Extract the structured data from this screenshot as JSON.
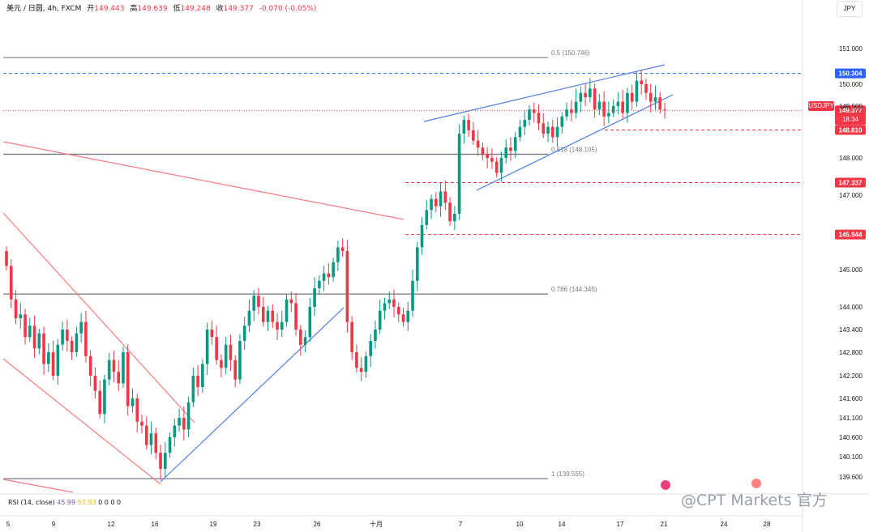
{
  "header": {
    "symbol": "美元 / 日圆, 4h, FXCM",
    "open_label": "开",
    "open": "149.443",
    "high_label": "高",
    "high": "149.639",
    "low_label": "低",
    "low": "149.248",
    "close_label": "收",
    "close": "149.377",
    "change": "-0.070 (-0.05%)"
  },
  "currency_button": "JPY",
  "rsi_legend": {
    "label": "RSI (14, close)",
    "v1": "45.99",
    "v2": "57.93",
    "zeros": "0 0 0 0"
  },
  "watermark": "@CPT Markets 官方",
  "price_tag": {
    "symbol": "USDJPY",
    "price": "149.377",
    "countdown": "18:34"
  },
  "colors": {
    "up": "#089981",
    "down": "#f23645",
    "trend_blue": "#4f7fe6",
    "trend_red": "#f77c80",
    "fib": "#787b86"
  },
  "chart_data": {
    "type": "candlestick",
    "symbol": "USDJPY",
    "timeframe": "4h",
    "y_axis_ticks": [
      "151.000",
      "150.000",
      "149.500",
      "148.000",
      "147.000",
      "145.000",
      "144.000",
      "143.400",
      "142.800",
      "142.200",
      "141.600",
      "141.100",
      "140.600",
      "140.100",
      "139.600"
    ],
    "x_axis_ticks": [
      "5",
      "9",
      "12",
      "16",
      "19",
      "23",
      "26",
      "十月",
      "7",
      "10",
      "14",
      "17",
      "21",
      "24",
      "28"
    ],
    "fib_levels": [
      {
        "label": "0.5 (150.746)",
        "value": 150.746
      },
      {
        "label": "0.618 (148.105)",
        "value": 148.105
      },
      {
        "label": "0.786 (144.345)",
        "value": 144.345
      },
      {
        "label": "1 (139.555)",
        "value": 139.555
      }
    ],
    "horizontal_levels": [
      {
        "value": 150.304,
        "label": "150.304",
        "style": "blue-dashed"
      },
      {
        "value": 148.81,
        "label": "148.810",
        "style": "red-dashed"
      },
      {
        "value": 147.337,
        "label": "147.337",
        "style": "red-dashed"
      },
      {
        "value": 145.944,
        "label": "145.944",
        "style": "red-dashed"
      }
    ],
    "last_price": 149.377,
    "series": [
      {
        "name": "close",
        "values": [
          145.1,
          144.2,
          143.7,
          143.8,
          143.2,
          143.5,
          142.9,
          143.3,
          142.5,
          142.8,
          142.2,
          143.0,
          143.4,
          143.1,
          142.8,
          143.3,
          143.6,
          142.7,
          142.2,
          141.8,
          141.2,
          142.1,
          142.6,
          142.3,
          142.0,
          142.8,
          141.4,
          141.6,
          141.0,
          140.9,
          140.4,
          140.7,
          140.2,
          139.8,
          140.2,
          140.6,
          140.9,
          141.1,
          140.8,
          141.5,
          142.2,
          141.9,
          142.5,
          143.4,
          143.2,
          142.6,
          142.4,
          143.0,
          142.6,
          142.1,
          143.1,
          143.5,
          143.9,
          144.3,
          144.0,
          143.6,
          143.9,
          143.6,
          143.4,
          143.6,
          144.2,
          144.1,
          143.4,
          143.0,
          143.2,
          144.0,
          144.5,
          144.7,
          144.9,
          144.8,
          145.2,
          145.6,
          145.5,
          143.6,
          142.8,
          142.4,
          142.3,
          142.7,
          143.1,
          143.4,
          143.9,
          144.1,
          144.2,
          144.0,
          143.8,
          143.6,
          143.9,
          144.7,
          145.6,
          146.2,
          146.6,
          146.9,
          146.7,
          147.1,
          146.8,
          146.3,
          146.5,
          148.7,
          149.1,
          148.8,
          148.5,
          148.3,
          148.1,
          148.0,
          147.9,
          147.6,
          148.0,
          148.3,
          148.2,
          148.6,
          148.9,
          149.1,
          149.4,
          149.3,
          149.0,
          148.7,
          148.9,
          148.6,
          148.9,
          149.2,
          149.4,
          149.3,
          149.6,
          149.8,
          149.7,
          149.9,
          149.4,
          149.6,
          149.2,
          149.3,
          149.5,
          149.6,
          149.3,
          149.8,
          149.6,
          150.1,
          150.0,
          149.8,
          149.6,
          149.7,
          149.4,
          149.377
        ]
      }
    ]
  }
}
